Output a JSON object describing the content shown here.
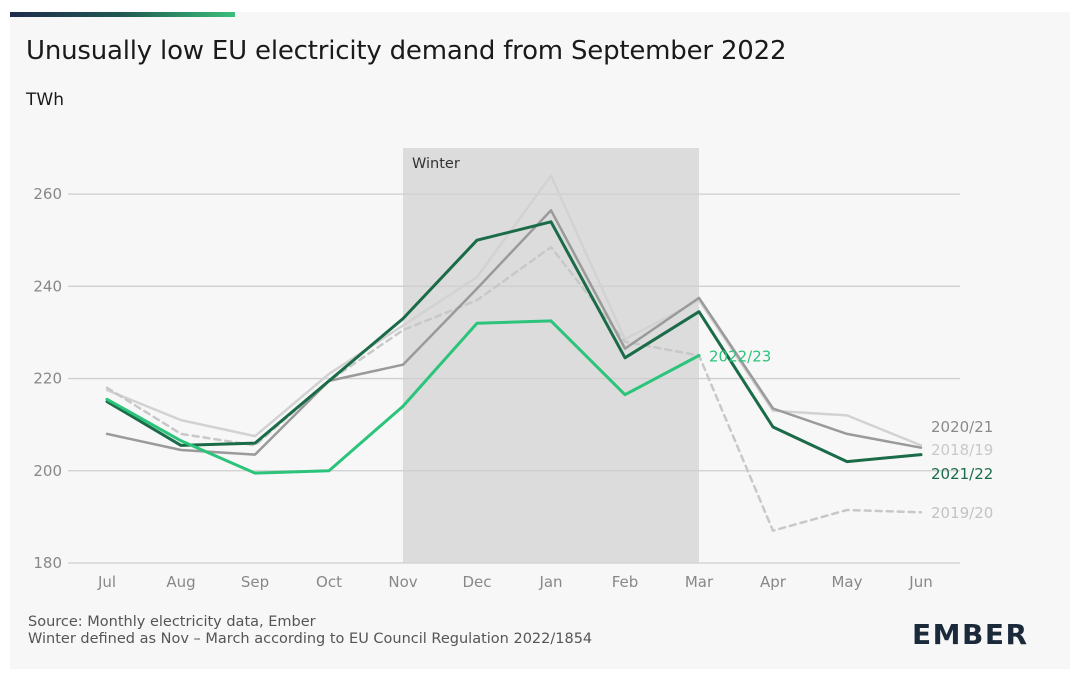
{
  "header": {
    "title": "Unusually low EU electricity demand from September 2022",
    "unit": "TWh"
  },
  "footer": {
    "source": "Source: Monthly electricity data, Ember",
    "note": "Winter defined as Nov – March according to EU Council Regulation 2022/1854",
    "logo": "EMBER"
  },
  "colors": {
    "background": "#f7f7f7",
    "grid": "#cfcfcf",
    "winter_band": "#dcdcdc",
    "axis_text": "#888888"
  },
  "chart_data": {
    "type": "line",
    "title": "Unusually low EU electricity demand from September 2022",
    "ylabel": "TWh",
    "xlabel": "",
    "categories": [
      "Jul",
      "Aug",
      "Sep",
      "Oct",
      "Nov",
      "Dec",
      "Jan",
      "Feb",
      "Mar",
      "Apr",
      "May",
      "Jun"
    ],
    "ylim": [
      180,
      270
    ],
    "yticks": [
      180,
      200,
      220,
      240,
      260
    ],
    "grid": true,
    "highlight": {
      "label": "Winter",
      "from": "Nov",
      "to": "Mar"
    },
    "series": [
      {
        "name": "2018/19",
        "color": "#d2d2d2",
        "dash": false,
        "width": 2.5,
        "label_color": "#c9c9c9",
        "values": [
          217.5,
          211,
          207.5,
          221,
          231.5,
          242,
          264,
          228.5,
          237,
          213,
          212,
          205.5
        ]
      },
      {
        "name": "2019/20",
        "color": "#c8c8c8",
        "dash": true,
        "width": 2.5,
        "label_color": "#c3c3c3",
        "values": [
          218,
          208,
          205.5,
          219.5,
          230.5,
          237,
          248.5,
          228,
          225,
          187,
          191.5,
          191
        ]
      },
      {
        "name": "2020/21",
        "color": "#9a9a9a",
        "dash": false,
        "width": 2.5,
        "label_color": "#8a8a8a",
        "values": [
          208,
          204.5,
          203.5,
          219.5,
          223,
          239.5,
          256.5,
          226.5,
          237.5,
          213.5,
          208,
          205
        ]
      },
      {
        "name": "2021/22",
        "color": "#1a6b47",
        "dash": false,
        "width": 3,
        "label_color": "#1a6b47",
        "values": [
          215,
          205.5,
          206,
          219.5,
          233,
          250,
          254,
          224.5,
          234.5,
          209.5,
          202,
          203.5
        ]
      },
      {
        "name": "2022/23",
        "color": "#2cc47a",
        "dash": false,
        "width": 3,
        "label_color": "#2cc47a",
        "values": [
          215.5,
          206.5,
          199.5,
          200,
          214,
          232,
          232.5,
          216.5,
          225,
          null,
          null,
          null
        ]
      }
    ]
  }
}
